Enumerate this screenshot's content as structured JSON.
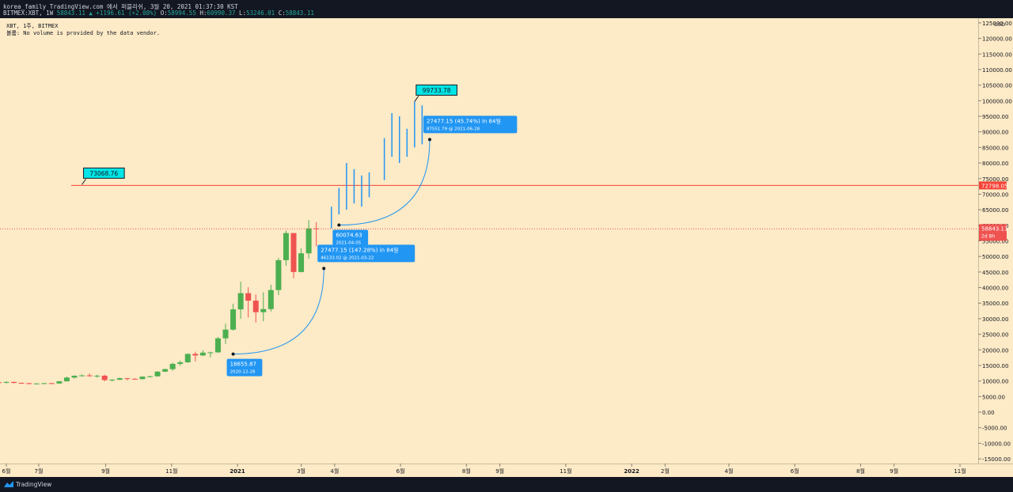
{
  "header": {
    "line1": "korea_family TradingView.com 에서 퍼블리쉬, 3월 20, 2021 01:37:30 KST",
    "symbol": "BITMEX:XBT, 1W",
    "last": "58843.11",
    "change": "+1196.61 (+2.08%)",
    "o_label": "O:",
    "o": "58994.55",
    "h_label": "H:",
    "h": "60990.37",
    "l_label": "L:",
    "l": "53246.01",
    "c_label": "C:",
    "c": "58843.11"
  },
  "legend": {
    "line1": "XBT, 1주, BITMEX",
    "line2": "볼륨: No volume is provided by the data vendor."
  },
  "footer": {
    "brand": "TradingView"
  },
  "colors": {
    "background": "#fdeac6",
    "up": "#4caf50",
    "down": "#ef5350",
    "projection": "#2196f3",
    "level_line": "#f44336",
    "callout": "#00e5e5"
  },
  "chart_data": {
    "type": "candlestick",
    "currency": "USD",
    "y_ticks": [
      125000,
      120000,
      115000,
      110000,
      105000,
      100000,
      95000,
      90000,
      85000,
      80000,
      75000,
      70000,
      65000,
      60000,
      55000,
      50000,
      45000,
      40000,
      35000,
      30000,
      25000,
      20000,
      15000,
      10000,
      5000,
      0,
      -5000,
      -10000,
      -15000
    ],
    "y_tick_labels": [
      "125000.00",
      "120000.00",
      "115000.00",
      "110000.00",
      "105000.00",
      "100000.00",
      "95000.00",
      "90000.00",
      "85000.00",
      "80000.00",
      "75000.00",
      "70000.00",
      "65000.00",
      "60000.00",
      "55000.00",
      "50000.00",
      "45000.00",
      "40000.00",
      "35000.00",
      "30000.00",
      "25000.00",
      "20000.00",
      "15000.00",
      "10000.00",
      "5000.00",
      "0.00",
      "-5000.00",
      "-10000.00",
      "-15000.00"
    ],
    "ylim": [
      -16500,
      126500
    ],
    "x_labels": [
      {
        "label": "6월",
        "date": "2020-06-01"
      },
      {
        "label": "7월",
        "date": "2020-07-01"
      },
      {
        "label": "9월",
        "date": "2020-09-01"
      },
      {
        "label": "11월",
        "date": "2020-11-01"
      },
      {
        "label": "2021",
        "date": "2021-01-01"
      },
      {
        "label": "3월",
        "date": "2021-03-01"
      },
      {
        "label": "4월",
        "date": "2021-04-01"
      },
      {
        "label": "6월",
        "date": "2021-06-01"
      },
      {
        "label": "8월",
        "date": "2021-08-01"
      },
      {
        "label": "9월",
        "date": "2021-09-01"
      },
      {
        "label": "11월",
        "date": "2021-11-01"
      },
      {
        "label": "2022",
        "date": "2022-01-01"
      },
      {
        "label": "2월",
        "date": "2022-02-01"
      },
      {
        "label": "4월",
        "date": "2022-04-01"
      },
      {
        "label": "6월",
        "date": "2022-06-01"
      },
      {
        "label": "8월",
        "date": "2022-08-01"
      },
      {
        "label": "9월",
        "date": "2022-09-01"
      },
      {
        "label": "11월",
        "date": "2022-11-01"
      }
    ],
    "candles": [
      {
        "d": "2020-05-25",
        "o": 9600,
        "h": 9800,
        "l": 9300,
        "c": 9500
      },
      {
        "d": "2020-06-01",
        "o": 9500,
        "h": 9900,
        "l": 9200,
        "c": 9700
      },
      {
        "d": "2020-06-08",
        "o": 9700,
        "h": 9800,
        "l": 9200,
        "c": 9400
      },
      {
        "d": "2020-06-15",
        "o": 9400,
        "h": 9500,
        "l": 9100,
        "c": 9300
      },
      {
        "d": "2020-06-22",
        "o": 9300,
        "h": 9400,
        "l": 8900,
        "c": 9100
      },
      {
        "d": "2020-06-29",
        "o": 9100,
        "h": 9300,
        "l": 8900,
        "c": 9200
      },
      {
        "d": "2020-07-06",
        "o": 9200,
        "h": 9400,
        "l": 9000,
        "c": 9300
      },
      {
        "d": "2020-07-13",
        "o": 9300,
        "h": 9400,
        "l": 9100,
        "c": 9200
      },
      {
        "d": "2020-07-20",
        "o": 9200,
        "h": 10000,
        "l": 9100,
        "c": 9900
      },
      {
        "d": "2020-07-27",
        "o": 9900,
        "h": 11400,
        "l": 9800,
        "c": 11100
      },
      {
        "d": "2020-08-03",
        "o": 11100,
        "h": 11800,
        "l": 10800,
        "c": 11700
      },
      {
        "d": "2020-08-10",
        "o": 11700,
        "h": 12100,
        "l": 11400,
        "c": 11800
      },
      {
        "d": "2020-08-17",
        "o": 11800,
        "h": 12400,
        "l": 11400,
        "c": 11700
      },
      {
        "d": "2020-08-24",
        "o": 11700,
        "h": 12000,
        "l": 11100,
        "c": 11700
      },
      {
        "d": "2020-08-31",
        "o": 11700,
        "h": 12000,
        "l": 9900,
        "c": 10300
      },
      {
        "d": "2020-09-07",
        "o": 10300,
        "h": 10600,
        "l": 9900,
        "c": 10400
      },
      {
        "d": "2020-09-14",
        "o": 10400,
        "h": 11100,
        "l": 10300,
        "c": 10900
      },
      {
        "d": "2020-09-21",
        "o": 10900,
        "h": 11000,
        "l": 10200,
        "c": 10700
      },
      {
        "d": "2020-09-28",
        "o": 10700,
        "h": 10900,
        "l": 10400,
        "c": 10600
      },
      {
        "d": "2020-10-05",
        "o": 10600,
        "h": 11500,
        "l": 10500,
        "c": 11400
      },
      {
        "d": "2020-10-12",
        "o": 11400,
        "h": 11700,
        "l": 11200,
        "c": 11500
      },
      {
        "d": "2020-10-19",
        "o": 11500,
        "h": 13200,
        "l": 11400,
        "c": 13000
      },
      {
        "d": "2020-10-26",
        "o": 13000,
        "h": 14000,
        "l": 12900,
        "c": 13800
      },
      {
        "d": "2020-11-02",
        "o": 13800,
        "h": 15900,
        "l": 13300,
        "c": 15500
      },
      {
        "d": "2020-11-09",
        "o": 15500,
        "h": 16500,
        "l": 14900,
        "c": 16000
      },
      {
        "d": "2020-11-16",
        "o": 16000,
        "h": 18800,
        "l": 15800,
        "c": 18700
      },
      {
        "d": "2020-11-23",
        "o": 18700,
        "h": 19400,
        "l": 16300,
        "c": 18200
      },
      {
        "d": "2020-11-30",
        "o": 18200,
        "h": 19900,
        "l": 18000,
        "c": 19100
      },
      {
        "d": "2020-12-07",
        "o": 19100,
        "h": 19400,
        "l": 17600,
        "c": 19200
      },
      {
        "d": "2020-12-14",
        "o": 19200,
        "h": 24100,
        "l": 19000,
        "c": 23700
      },
      {
        "d": "2020-12-21",
        "o": 23700,
        "h": 28400,
        "l": 21900,
        "c": 26500
      },
      {
        "d": "2020-12-28",
        "o": 26500,
        "h": 34800,
        "l": 26200,
        "c": 33000
      },
      {
        "d": "2021-01-04",
        "o": 33000,
        "h": 41900,
        "l": 30000,
        "c": 38200
      },
      {
        "d": "2021-01-11",
        "o": 38200,
        "h": 40100,
        "l": 30400,
        "c": 35800
      },
      {
        "d": "2021-01-18",
        "o": 35800,
        "h": 37800,
        "l": 28800,
        "c": 32100
      },
      {
        "d": "2021-01-25",
        "o": 32100,
        "h": 38500,
        "l": 29200,
        "c": 33100
      },
      {
        "d": "2021-02-01",
        "o": 33100,
        "h": 40900,
        "l": 32300,
        "c": 39200
      },
      {
        "d": "2021-02-08",
        "o": 39200,
        "h": 49500,
        "l": 37600,
        "c": 48800
      },
      {
        "d": "2021-02-15",
        "o": 48800,
        "h": 58300,
        "l": 47000,
        "c": 57500
      },
      {
        "d": "2021-02-22",
        "o": 57500,
        "h": 57500,
        "l": 43000,
        "c": 45000
      },
      {
        "d": "2021-03-01",
        "o": 45000,
        "h": 52600,
        "l": 44900,
        "c": 51000
      },
      {
        "d": "2021-03-08",
        "o": 51000,
        "h": 61700,
        "l": 49300,
        "c": 59000
      },
      {
        "d": "2021-03-15",
        "o": 58994.55,
        "h": 60990.37,
        "l": 53246.01,
        "c": 58843.11
      }
    ],
    "projection_bars": [
      {
        "d": "2021-03-29",
        "h": 66000,
        "l": 59000
      },
      {
        "d": "2021-04-05",
        "h": 72000,
        "l": 63500
      },
      {
        "d": "2021-04-12",
        "h": 80000,
        "l": 65000
      },
      {
        "d": "2021-04-19",
        "h": 78000,
        "l": 67000
      },
      {
        "d": "2021-04-26",
        "h": 76000,
        "l": 66000
      },
      {
        "d": "2021-05-03",
        "h": 77000,
        "l": 69000
      },
      {
        "d": "2021-05-17",
        "h": 88000,
        "l": 74500
      },
      {
        "d": "2021-05-24",
        "h": 96000,
        "l": 82000
      },
      {
        "d": "2021-05-31",
        "h": 95000,
        "l": 80000
      },
      {
        "d": "2021-06-07",
        "h": 91000,
        "l": 82000
      },
      {
        "d": "2021-06-14",
        "h": 99733.78,
        "l": 85000
      },
      {
        "d": "2021-06-21",
        "h": 98500,
        "l": 86000
      }
    ],
    "horizontal_line": {
      "value": 72798.05,
      "label": "72798.05"
    },
    "price_label": {
      "value": 58843.11,
      "label": "58843.11",
      "countdown": "2d 8h"
    },
    "callouts": [
      {
        "text": "73068.76",
        "value": 73068.76,
        "d": "2020-08-10"
      },
      {
        "text": "99733.78",
        "value": 99733.78,
        "d": "2021-06-14"
      }
    ],
    "arcs": [
      {
        "from_d": "2020-12-28",
        "from_v": 18655.87,
        "to_d": "2021-03-22",
        "to_v": 46133.02
      },
      {
        "from_d": "2021-04-05",
        "from_v": 60074.63,
        "to_d": "2021-06-28",
        "to_v": 87551.79
      }
    ],
    "measure_labels": [
      {
        "main": "18655.87",
        "sub": "2020-12-28",
        "d": "2020-12-28",
        "v": 18655.87,
        "pos": "below"
      },
      {
        "main": "27477.15 (147.28%) in 84일",
        "sub": "46133.02 @ 2021-03-22",
        "d": "2021-03-22",
        "v": 46133.02,
        "pos": "above"
      },
      {
        "main": "60074.63",
        "sub": "2021-04-05",
        "d": "2021-04-05",
        "v": 60074.63,
        "pos": "below"
      },
      {
        "main": "27477.15 (45.74%) in 84일",
        "sub": "87551.79 @ 2021-06-28",
        "d": "2021-06-28",
        "v": 87551.79,
        "pos": "above"
      }
    ]
  }
}
